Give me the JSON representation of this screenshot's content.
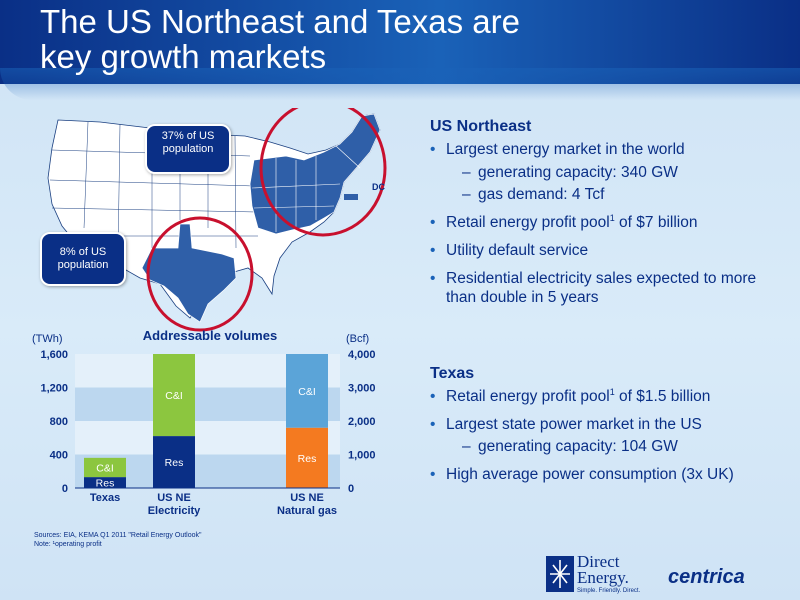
{
  "title": {
    "line1": "The US Northeast and Texas are",
    "line2": "key growth markets"
  },
  "map": {
    "callout_northeast": "37% of US population",
    "callout_texas": "8% of US population",
    "dc_label": "DC",
    "highlight_color": "#2f5fa8",
    "circle_color": "#c8102e"
  },
  "us_northeast": {
    "heading": "US Northeast",
    "b1": "Largest energy market in the world",
    "b1_sub1": "generating capacity: 340 GW",
    "b1_sub2": "gas demand: 4 Tcf",
    "b2_pre": "Retail energy profit pool",
    "b2_sup": "1",
    "b2_post": " of $7 billion",
    "b3": "Utility default service",
    "b4": "Residential electricity sales expected to more than double in 5 years"
  },
  "texas": {
    "heading": "Texas",
    "b1_pre": "Retail energy profit pool",
    "b1_sup": "1",
    "b1_post": " of $1.5 billion",
    "b2": "Largest state power market in the US",
    "b2_sub1": "generating capacity: 104 GW",
    "b3": "High average power consumption (3x UK)"
  },
  "chart_data": {
    "type": "bar",
    "title": "Addressable volumes",
    "y_left_label": "(TWh)",
    "y_right_label": "(Bcf)",
    "y_left_ticks": [
      "0",
      "400",
      "800",
      "1,200",
      "1,600"
    ],
    "y_right_ticks": [
      "0",
      "1,000",
      "2,000",
      "3,000",
      "4,000"
    ],
    "ylim_left": [
      0,
      1600
    ],
    "ylim_right": [
      0,
      4000
    ],
    "categories": [
      "Texas",
      "US NE Electricity",
      "US NE Natural gas"
    ],
    "category_lines": [
      [
        "Texas"
      ],
      [
        "US NE",
        "Electricity"
      ],
      [
        "US NE",
        "Natural gas"
      ]
    ],
    "bars": [
      {
        "category": "Texas",
        "axis": "left",
        "segments": [
          {
            "name": "Res",
            "value": 130,
            "color": "#0a2f86"
          },
          {
            "name": "C&I",
            "value": 230,
            "color": "#8cc63f"
          }
        ]
      },
      {
        "category": "US NE Electricity",
        "axis": "left",
        "segments": [
          {
            "name": "Res",
            "value": 620,
            "color": "#0a2f86"
          },
          {
            "name": "C&I",
            "value": 980,
            "color": "#8cc63f"
          }
        ]
      },
      {
        "category": "US NE Natural gas",
        "axis": "right",
        "segments": [
          {
            "name": "Res",
            "value": 1800,
            "color": "#f47a20"
          },
          {
            "name": "C&I",
            "value": 2200,
            "color": "#5ba4d8"
          }
        ]
      }
    ]
  },
  "sources": {
    "line1": "Sources: EIA, KEMA Q1 2011 \"Retail Energy Outlook\"",
    "line2": "Note:     ¹operating profit"
  },
  "logos": {
    "direct_energy_name": "Direct Energy.",
    "direct_energy_tagline": "Simple. Friendly. Direct.",
    "centrica": "centrica"
  }
}
